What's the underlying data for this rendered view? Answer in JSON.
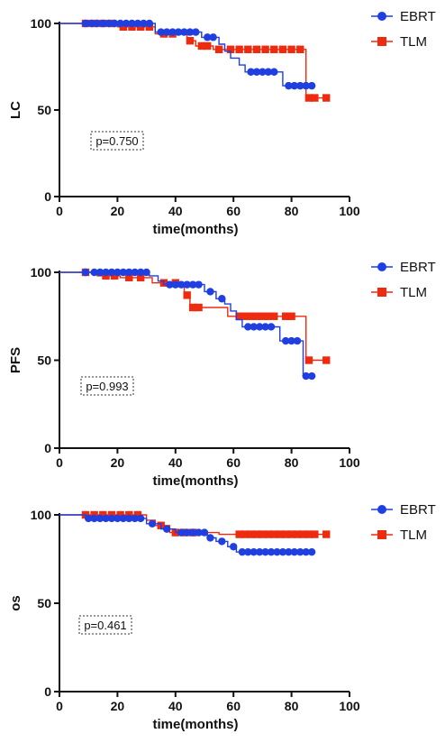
{
  "colors": {
    "EBRT": "#1f3fe0",
    "TLM": "#ee2a0f",
    "axis": "#111111"
  },
  "chart_data": [
    {
      "type": "line",
      "ylabel": "LC",
      "xlabel": "time(months)",
      "xlim": [
        0,
        100
      ],
      "ylim": [
        0,
        100
      ],
      "xticks": [
        0,
        20,
        40,
        60,
        80,
        100
      ],
      "yticks": [
        0,
        50,
        100
      ],
      "legend": "top-right",
      "pvalue": "p=0.750",
      "series": [
        {
          "name": "EBRT",
          "steps": [
            [
              0,
              100
            ],
            [
              33,
              100
            ],
            [
              33,
              95
            ],
            [
              49,
              95
            ],
            [
              49,
              92
            ],
            [
              55,
              92
            ],
            [
              55,
              88
            ],
            [
              57,
              88
            ],
            [
              57,
              84
            ],
            [
              59,
              84
            ],
            [
              59,
              80
            ],
            [
              62,
              80
            ],
            [
              62,
              76
            ],
            [
              64,
              76
            ],
            [
              64,
              72
            ],
            [
              77,
              72
            ],
            [
              77,
              64
            ],
            [
              87,
              64
            ]
          ],
          "censors": [
            [
              9,
              100
            ],
            [
              11,
              100
            ],
            [
              13,
              100
            ],
            [
              15,
              100
            ],
            [
              17,
              100
            ],
            [
              19,
              100
            ],
            [
              21,
              100
            ],
            [
              23,
              100
            ],
            [
              25,
              100
            ],
            [
              27,
              100
            ],
            [
              29,
              100
            ],
            [
              31,
              100
            ],
            [
              35,
              95
            ],
            [
              37,
              95
            ],
            [
              39,
              95
            ],
            [
              41,
              95
            ],
            [
              43,
              95
            ],
            [
              45,
              95
            ],
            [
              47,
              95
            ],
            [
              51,
              92
            ],
            [
              53,
              92
            ],
            [
              66,
              72
            ],
            [
              68,
              72
            ],
            [
              70,
              72
            ],
            [
              72,
              72
            ],
            [
              74,
              72
            ],
            [
              79,
              64
            ],
            [
              81,
              64
            ],
            [
              83,
              64
            ],
            [
              85,
              64
            ],
            [
              87,
              64
            ]
          ]
        },
        {
          "name": "TLM",
          "steps": [
            [
              0,
              100
            ],
            [
              20,
              100
            ],
            [
              20,
              98
            ],
            [
              33,
              98
            ],
            [
              33,
              94
            ],
            [
              44,
              94
            ],
            [
              44,
              90
            ],
            [
              47,
              90
            ],
            [
              47,
              87
            ],
            [
              53,
              87
            ],
            [
              53,
              85
            ],
            [
              85,
              85
            ],
            [
              85,
              57
            ],
            [
              92,
              57
            ]
          ],
          "censors": [
            [
              9,
              100
            ],
            [
              12,
              100
            ],
            [
              15,
              100
            ],
            [
              18,
              100
            ],
            [
              22,
              98
            ],
            [
              25,
              98
            ],
            [
              28,
              98
            ],
            [
              31,
              98
            ],
            [
              36,
              94
            ],
            [
              39,
              94
            ],
            [
              45,
              90
            ],
            [
              49,
              87
            ],
            [
              51,
              87
            ],
            [
              55,
              85
            ],
            [
              59,
              85
            ],
            [
              62,
              85
            ],
            [
              65,
              85
            ],
            [
              68,
              85
            ],
            [
              71,
              85
            ],
            [
              74,
              85
            ],
            [
              77,
              85
            ],
            [
              80,
              85
            ],
            [
              83,
              85
            ],
            [
              86,
              57
            ],
            [
              88,
              57
            ],
            [
              92,
              57
            ]
          ]
        }
      ]
    },
    {
      "type": "line",
      "ylabel": "PFS",
      "xlabel": "time(months)",
      "xlim": [
        0,
        100
      ],
      "ylim": [
        0,
        100
      ],
      "xticks": [
        0,
        20,
        40,
        60,
        80,
        100
      ],
      "yticks": [
        0,
        50,
        100
      ],
      "legend": "top-right",
      "pvalue": "p=0.993",
      "series": [
        {
          "name": "EBRT",
          "steps": [
            [
              0,
              100
            ],
            [
              31,
              100
            ],
            [
              31,
              98
            ],
            [
              34,
              98
            ],
            [
              34,
              95
            ],
            [
              36,
              95
            ],
            [
              36,
              93
            ],
            [
              50,
              93
            ],
            [
              50,
              89
            ],
            [
              54,
              89
            ],
            [
              54,
              85
            ],
            [
              57,
              85
            ],
            [
              57,
              82
            ],
            [
              59,
              82
            ],
            [
              59,
              78
            ],
            [
              61,
              78
            ],
            [
              61,
              73
            ],
            [
              63,
              73
            ],
            [
              63,
              69
            ],
            [
              76,
              69
            ],
            [
              76,
              61
            ],
            [
              84,
              61
            ],
            [
              84,
              41
            ],
            [
              87,
              41
            ]
          ],
          "censors": [
            [
              9,
              100
            ],
            [
              12,
              100
            ],
            [
              14,
              100
            ],
            [
              16,
              100
            ],
            [
              18,
              100
            ],
            [
              20,
              100
            ],
            [
              22,
              100
            ],
            [
              24,
              100
            ],
            [
              26,
              100
            ],
            [
              28,
              100
            ],
            [
              30,
              100
            ],
            [
              38,
              93
            ],
            [
              40,
              93
            ],
            [
              42,
              93
            ],
            [
              44,
              93
            ],
            [
              46,
              93
            ],
            [
              48,
              93
            ],
            [
              52,
              89
            ],
            [
              56,
              85
            ],
            [
              65,
              69
            ],
            [
              67,
              69
            ],
            [
              69,
              69
            ],
            [
              71,
              69
            ],
            [
              73,
              69
            ],
            [
              78,
              61
            ],
            [
              80,
              61
            ],
            [
              82,
              61
            ],
            [
              85,
              41
            ],
            [
              87,
              41
            ]
          ]
        },
        {
          "name": "TLM",
          "steps": [
            [
              0,
              100
            ],
            [
              13,
              100
            ],
            [
              13,
              98
            ],
            [
              21,
              98
            ],
            [
              21,
              97
            ],
            [
              32,
              97
            ],
            [
              32,
              94
            ],
            [
              43,
              94
            ],
            [
              43,
              87
            ],
            [
              45,
              87
            ],
            [
              45,
              80
            ],
            [
              58,
              80
            ],
            [
              58,
              75
            ],
            [
              85,
              75
            ],
            [
              85,
              50
            ],
            [
              92,
              50
            ]
          ],
          "censors": [
            [
              9,
              100
            ],
            [
              16,
              98
            ],
            [
              19,
              98
            ],
            [
              24,
              97
            ],
            [
              28,
              97
            ],
            [
              36,
              94
            ],
            [
              40,
              94
            ],
            [
              44,
              87
            ],
            [
              46,
              80
            ],
            [
              48,
              80
            ],
            [
              62,
              75
            ],
            [
              64,
              75
            ],
            [
              66,
              75
            ],
            [
              68,
              75
            ],
            [
              70,
              75
            ],
            [
              72,
              75
            ],
            [
              74,
              75
            ],
            [
              78,
              75
            ],
            [
              80,
              75
            ],
            [
              86,
              50
            ],
            [
              92,
              50
            ]
          ]
        }
      ]
    },
    {
      "type": "line",
      "ylabel": "os",
      "xlabel": "time(months)",
      "xlim": [
        0,
        100
      ],
      "ylim": [
        0,
        100
      ],
      "xticks": [
        0,
        20,
        40,
        60,
        80,
        100
      ],
      "yticks": [
        0,
        50,
        100
      ],
      "legend": "top-right",
      "pvalue": "p=0.461",
      "series": [
        {
          "name": "EBRT",
          "steps": [
            [
              0,
              100
            ],
            [
              9,
              100
            ],
            [
              9,
              98
            ],
            [
              30,
              98
            ],
            [
              30,
              95
            ],
            [
              35,
              95
            ],
            [
              35,
              92
            ],
            [
              40,
              92
            ],
            [
              40,
              90
            ],
            [
              51,
              90
            ],
            [
              51,
              87
            ],
            [
              54,
              87
            ],
            [
              54,
              85
            ],
            [
              58,
              85
            ],
            [
              58,
              82
            ],
            [
              61,
              82
            ],
            [
              61,
              79
            ],
            [
              87,
              79
            ]
          ],
          "censors": [
            [
              10,
              98
            ],
            [
              12,
              98
            ],
            [
              14,
              98
            ],
            [
              16,
              98
            ],
            [
              18,
              98
            ],
            [
              20,
              98
            ],
            [
              22,
              98
            ],
            [
              24,
              98
            ],
            [
              26,
              98
            ],
            [
              28,
              98
            ],
            [
              32,
              95
            ],
            [
              37,
              92
            ],
            [
              42,
              90
            ],
            [
              44,
              90
            ],
            [
              46,
              90
            ],
            [
              48,
              90
            ],
            [
              50,
              90
            ],
            [
              52,
              87
            ],
            [
              56,
              85
            ],
            [
              60,
              82
            ],
            [
              63,
              79
            ],
            [
              65,
              79
            ],
            [
              67,
              79
            ],
            [
              69,
              79
            ],
            [
              71,
              79
            ],
            [
              73,
              79
            ],
            [
              75,
              79
            ],
            [
              77,
              79
            ],
            [
              79,
              79
            ],
            [
              81,
              79
            ],
            [
              83,
              79
            ],
            [
              85,
              79
            ],
            [
              87,
              79
            ]
          ]
        },
        {
          "name": "TLM",
          "steps": [
            [
              0,
              100
            ],
            [
              30,
              100
            ],
            [
              30,
              97
            ],
            [
              33,
              97
            ],
            [
              33,
              94
            ],
            [
              38,
              94
            ],
            [
              38,
              90
            ],
            [
              55,
              90
            ],
            [
              55,
              89
            ],
            [
              92,
              89
            ]
          ],
          "censors": [
            [
              9,
              100
            ],
            [
              12,
              100
            ],
            [
              15,
              100
            ],
            [
              18,
              100
            ],
            [
              21,
              100
            ],
            [
              24,
              100
            ],
            [
              27,
              100
            ],
            [
              35,
              94
            ],
            [
              40,
              90
            ],
            [
              43,
              90
            ],
            [
              46,
              90
            ],
            [
              62,
              89
            ],
            [
              64,
              89
            ],
            [
              66,
              89
            ],
            [
              68,
              89
            ],
            [
              70,
              89
            ],
            [
              72,
              89
            ],
            [
              74,
              89
            ],
            [
              76,
              89
            ],
            [
              78,
              89
            ],
            [
              80,
              89
            ],
            [
              82,
              89
            ],
            [
              84,
              89
            ],
            [
              86,
              89
            ],
            [
              88,
              89
            ],
            [
              92,
              89
            ]
          ]
        }
      ]
    }
  ]
}
